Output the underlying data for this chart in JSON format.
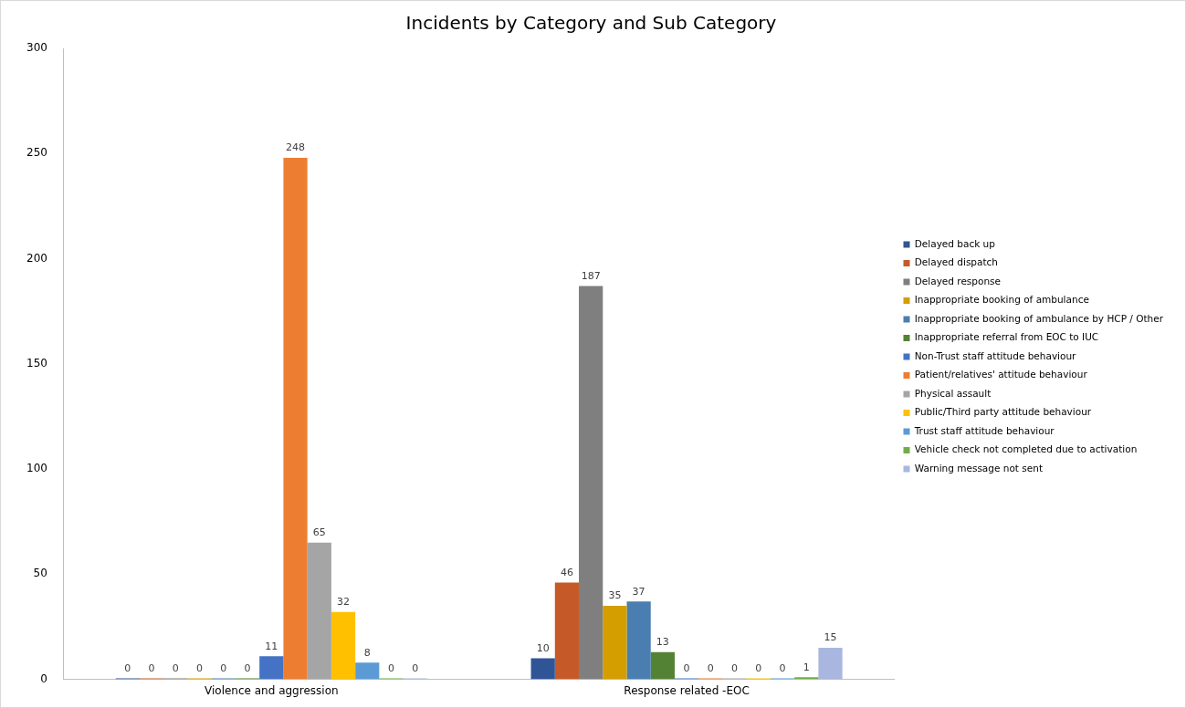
{
  "chart_data": {
    "type": "bar",
    "title": "Incidents by Category and Sub Category",
    "categories": [
      "Violence and aggression",
      "Response related -EOC"
    ],
    "series": [
      {
        "name": "Delayed back up",
        "color": "#2f5597",
        "values": [
          0,
          10
        ]
      },
      {
        "name": "Delayed dispatch",
        "color": "#c55a28",
        "values": [
          0,
          46
        ]
      },
      {
        "name": "Delayed response",
        "color": "#7f7f7f",
        "values": [
          0,
          187
        ]
      },
      {
        "name": "Inappropriate booking of ambulance",
        "color": "#d49e00",
        "values": [
          0,
          35
        ]
      },
      {
        "name": "Inappropriate booking of ambulance by HCP / Other",
        "color": "#4a7eb0",
        "values": [
          0,
          37
        ]
      },
      {
        "name": "Inappropriate referral from EOC to IUC",
        "color": "#548235",
        "values": [
          0,
          13
        ]
      },
      {
        "name": "Non-Trust staff attitude behaviour",
        "color": "#4472c4",
        "values": [
          11,
          0
        ]
      },
      {
        "name": "Patient/relatives' attitude behaviour",
        "color": "#ed7d31",
        "values": [
          248,
          0
        ]
      },
      {
        "name": "Physical assault",
        "color": "#a5a5a5",
        "values": [
          65,
          0
        ]
      },
      {
        "name": "Public/Third party attitude behaviour",
        "color": "#ffc000",
        "values": [
          32,
          0
        ]
      },
      {
        "name": "Trust staff attitude behaviour",
        "color": "#5b9bd5",
        "values": [
          8,
          0
        ]
      },
      {
        "name": "Vehicle check not completed due to activation",
        "color": "#70ad47",
        "values": [
          0,
          1
        ]
      },
      {
        "name": "Warning message not sent",
        "color": "#a9b6e0",
        "values": [
          0,
          15
        ]
      }
    ],
    "ylim": [
      0,
      300
    ],
    "yticks": [
      0,
      50,
      100,
      150,
      200,
      250,
      300
    ],
    "grid": false,
    "legend": "right",
    "data_labels": true
  }
}
